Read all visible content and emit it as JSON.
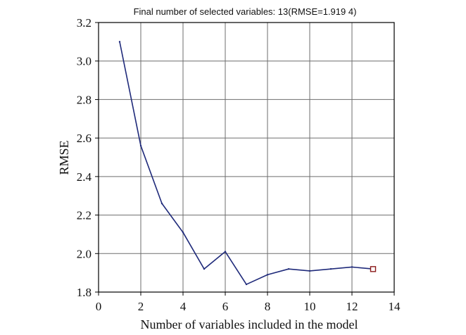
{
  "chart_data": {
    "type": "line",
    "title": "Final number of selected variables: 13(RMSE=1.919 4)",
    "xlabel": "Number of variables included in the model",
    "ylabel": "RMSE",
    "xlim": [
      0,
      14
    ],
    "ylim": [
      1.8,
      3.2
    ],
    "xticks": [
      "0",
      "2",
      "4",
      "6",
      "8",
      "10",
      "12",
      "14"
    ],
    "yticks": [
      "1.8",
      "2.0",
      "2.2",
      "2.4",
      "2.6",
      "2.8",
      "3.0",
      "3.2"
    ],
    "grid": true,
    "series": [
      {
        "x": [
          1,
          2,
          3,
          4,
          5,
          6,
          7,
          8,
          9,
          10,
          11,
          12,
          13
        ],
        "y": [
          3.1,
          2.56,
          2.26,
          2.11,
          1.92,
          2.01,
          1.84,
          1.89,
          1.92,
          1.91,
          1.92,
          1.93,
          1.92
        ]
      }
    ],
    "highlight": {
      "x": 13,
      "y": 1.9194
    },
    "colors": {
      "line": "#1f2a7a",
      "marker": "#8b1a1a",
      "grid": "#6e6e6e",
      "axis": "#000000"
    }
  }
}
